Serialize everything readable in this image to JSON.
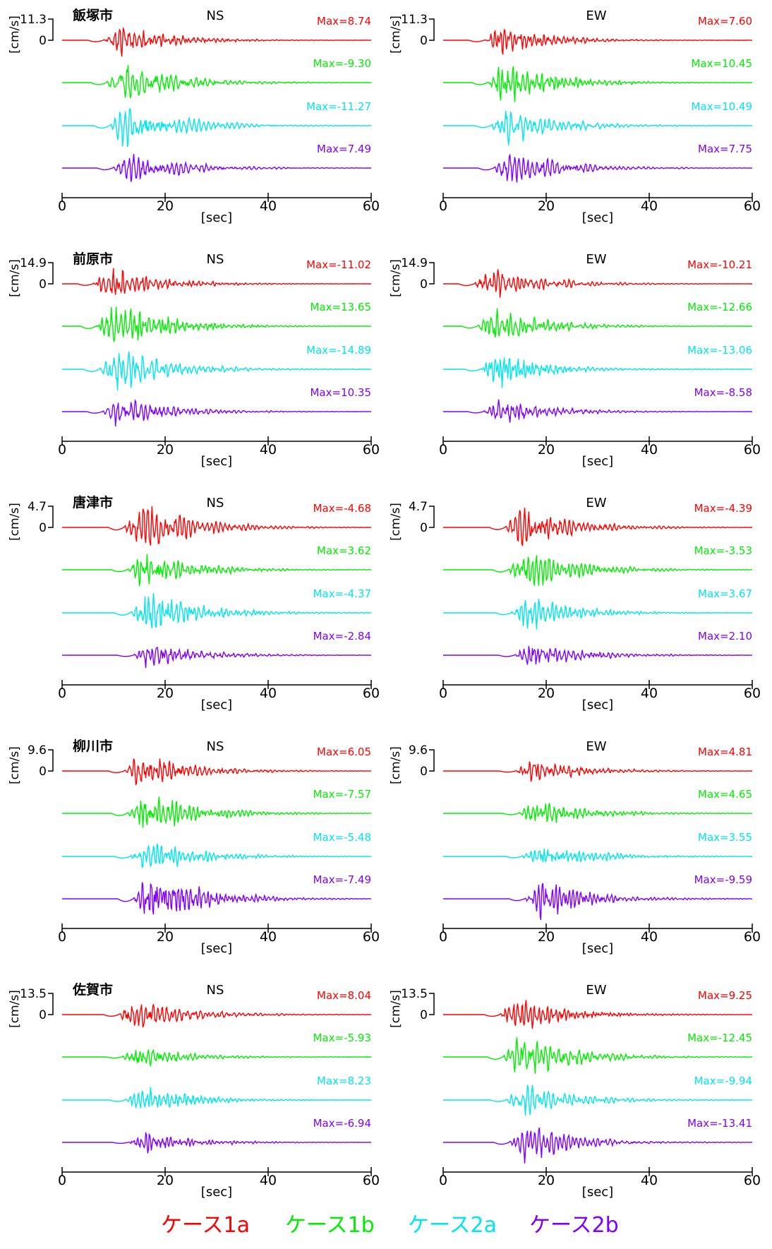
{
  "legend": {
    "items": [
      {
        "label": "ケース1a",
        "color": "#ff0000"
      },
      {
        "label": "ケース1b",
        "color": "#00ee00"
      },
      {
        "label": "ケース2a",
        "color": "#00e5ee"
      },
      {
        "label": "ケース2b",
        "color": "#8000ff"
      }
    ]
  },
  "chart_data": {
    "type": "line",
    "x_axis": {
      "label": "[sec]",
      "range": [
        0,
        60
      ],
      "ticks": [
        0,
        20,
        40,
        60
      ]
    },
    "y_axis": {
      "label": "[cm/s]"
    },
    "max_prefix": "Max=",
    "series_names": [
      "ケース1a",
      "ケース1b",
      "ケース2a",
      "ケース2b"
    ],
    "series_colors": [
      "#ff0000",
      "#00ee00",
      "#00e5ee",
      "#8000ff"
    ],
    "zero_tick_label": "0",
    "rows": [
      {
        "city": "飯塚市",
        "scale_label": "11.3",
        "scale": 11.3,
        "panels": [
          {
            "component": "NS",
            "max": [
              "8.74",
              "-9.30",
              "-11.27",
              "7.49"
            ],
            "onset": 8.0
          },
          {
            "component": "EW",
            "max": [
              "7.60",
              "10.45",
              "10.49",
              "7.75"
            ],
            "onset": 8.0
          }
        ]
      },
      {
        "city": "前原市",
        "scale_label": "14.9",
        "scale": 14.9,
        "panels": [
          {
            "component": "NS",
            "max": [
              "-11.02",
              "13.65",
              "-14.89",
              "10.35"
            ],
            "onset": 6.0
          },
          {
            "component": "EW",
            "max": [
              "-10.21",
              "-12.66",
              "-13.06",
              "-8.58"
            ],
            "onset": 6.0
          }
        ]
      },
      {
        "city": "唐津市",
        "scale_label": "4.7",
        "scale": 4.7,
        "panels": [
          {
            "component": "NS",
            "max": [
              "-4.68",
              "3.62",
              "-4.37",
              "-2.84"
            ],
            "onset": 12.0
          },
          {
            "component": "EW",
            "max": [
              "-4.39",
              "-3.53",
              "3.67",
              "2.10"
            ],
            "onset": 12.0
          }
        ]
      },
      {
        "city": "柳川市",
        "scale_label": "9.6",
        "scale": 9.6,
        "panels": [
          {
            "component": "NS",
            "max": [
              "6.05",
              "-7.57",
              "-5.48",
              "-7.49"
            ],
            "onset": 12.0
          },
          {
            "component": "EW",
            "max": [
              "4.81",
              "4.65",
              "3.55",
              "-9.59"
            ],
            "onset": 14.0
          }
        ]
      },
      {
        "city": "佐賀市",
        "scale_label": "13.5",
        "scale": 13.5,
        "panels": [
          {
            "component": "NS",
            "max": [
              "8.04",
              "-5.93",
              "8.23",
              "-6.94"
            ],
            "onset": 11.0
          },
          {
            "component": "EW",
            "max": [
              "9.25",
              "-12.45",
              "-9.94",
              "-13.41"
            ],
            "onset": 11.0
          }
        ]
      }
    ]
  }
}
